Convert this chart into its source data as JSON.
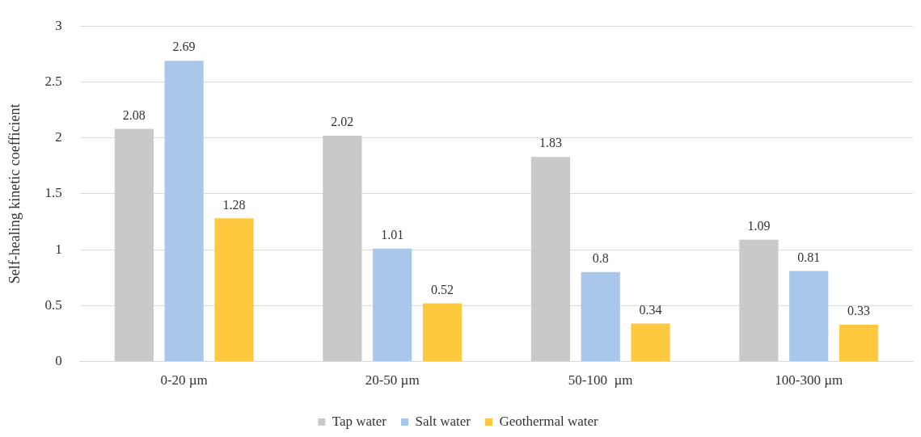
{
  "chart_data": {
    "type": "bar",
    "ylabel": "Self-healing kinetic coefficient",
    "categories": [
      "0-20 µm",
      "20-50 µm",
      "50-100  µm",
      "100-300 µm"
    ],
    "series": [
      {
        "name": "Tap water",
        "color": "#c9c9c9",
        "values": [
          2.08,
          2.02,
          1.83,
          1.09
        ]
      },
      {
        "name": "Salt water",
        "color": "#a9c7ea",
        "values": [
          2.69,
          1.01,
          0.8,
          0.81
        ]
      },
      {
        "name": "Geothermal water",
        "color": "#ffc93f",
        "values": [
          1.28,
          0.52,
          0.34,
          0.33
        ]
      }
    ],
    "ylim": [
      0,
      3
    ],
    "yticks": [
      0,
      0.5,
      1,
      1.5,
      2,
      2.5,
      3
    ],
    "grid": "y",
    "legend": "bottom",
    "data_labels": true
  }
}
